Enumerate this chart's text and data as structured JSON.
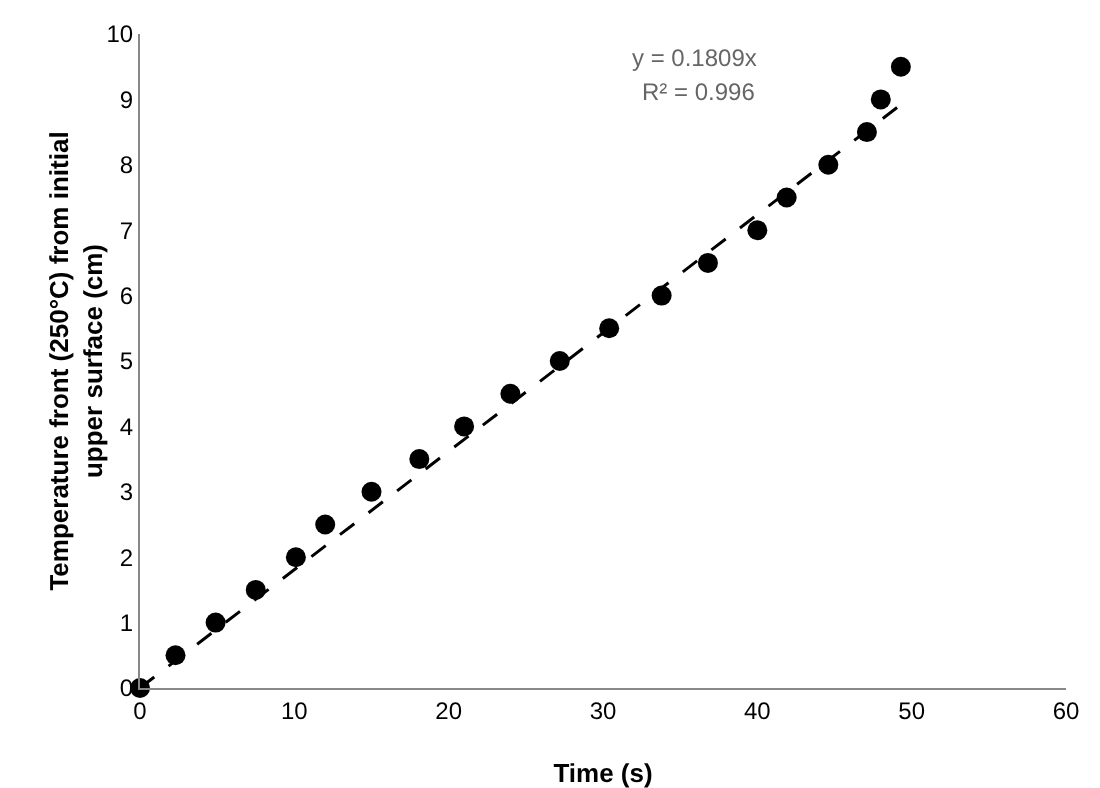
{
  "chart_data": {
    "type": "scatter",
    "xlabel": "Time (s)",
    "ylabel": "Temperature front (250°C) from initial upper surface (cm)",
    "xlim": [
      0,
      60
    ],
    "xticks": [
      0,
      10,
      20,
      30,
      40,
      50,
      60
    ],
    "ylim": [
      0,
      10
    ],
    "yticks": [
      0,
      1,
      2,
      3,
      4,
      5,
      6,
      7,
      8,
      9,
      10
    ],
    "grid": false,
    "marker": "circle",
    "series": [
      {
        "color": "#000000",
        "x": [
          0,
          2.3,
          4.9,
          7.5,
          10.1,
          12.0,
          15.0,
          18.1,
          21.0,
          24.0,
          27.2,
          30.4,
          33.8,
          36.8,
          40.0,
          41.9,
          44.6,
          47.1,
          48.0,
          49.3
        ],
        "values": [
          0,
          0.5,
          1,
          1.5,
          2,
          2.5,
          3,
          3.5,
          4,
          4.5,
          5,
          5.5,
          6,
          6.5,
          7,
          7.5,
          8,
          8.5,
          9,
          9.5
        ]
      },
      {
        "type": "line",
        "color": "#000000",
        "line_style": "dashed",
        "marker": "none",
        "x": [
          0,
          49.3
        ],
        "values": [
          0,
          8.92
        ]
      }
    ],
    "annotations": [
      "y = 0.1809x",
      "R² = 0.996"
    ]
  }
}
